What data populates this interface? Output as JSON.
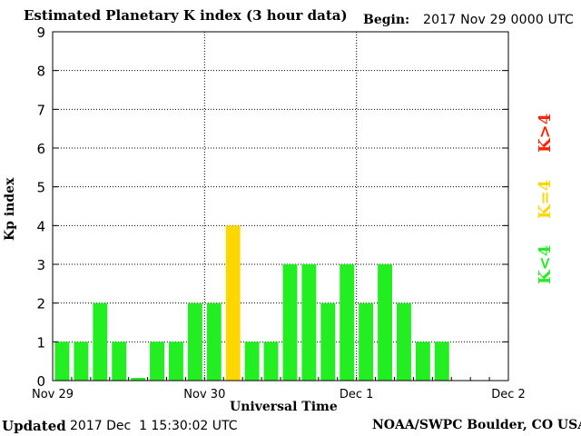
{
  "header": {
    "title": "Estimated Planetary K index (3 hour data)",
    "begin_label": "Begin:",
    "begin_value": "2017 Nov 29 0000 UTC"
  },
  "footer": {
    "updated_label": "Updated",
    "updated_value": "2017 Dec  1 15:30:02 UTC",
    "source": "NOAA/SWPC Boulder, CO USA"
  },
  "legend": {
    "gt": {
      "label": "K>4",
      "color": "#ff2200"
    },
    "eq": {
      "label": "K=4",
      "color": "#ffd700"
    },
    "lt": {
      "label": "K<4",
      "color": "#22ee22"
    }
  },
  "chart_data": {
    "type": "bar",
    "title": "Estimated Planetary K index (3 hour data)",
    "xlabel": "Universal Time",
    "ylabel": "Kp index",
    "ylim": [
      0,
      9
    ],
    "yticks": [
      0,
      1,
      2,
      3,
      4,
      5,
      6,
      7,
      8,
      9
    ],
    "xlim": [
      "2017-11-29 00:00",
      "2017-12-02 00:00"
    ],
    "xtick_labels": [
      "Nov 29",
      "Nov 30",
      "Dec 1",
      "Dec 2"
    ],
    "bar_interval_hours": 3,
    "grid": true,
    "x": [
      "2017-11-29 00:00",
      "2017-11-29 03:00",
      "2017-11-29 06:00",
      "2017-11-29 09:00",
      "2017-11-29 12:00",
      "2017-11-29 15:00",
      "2017-11-29 18:00",
      "2017-11-29 21:00",
      "2017-11-30 00:00",
      "2017-11-30 03:00",
      "2017-11-30 06:00",
      "2017-11-30 09:00",
      "2017-11-30 12:00",
      "2017-11-30 15:00",
      "2017-11-30 18:00",
      "2017-11-30 21:00",
      "2017-12-01 00:00",
      "2017-12-01 03:00",
      "2017-12-01 06:00",
      "2017-12-01 09:00",
      "2017-12-01 12:00",
      "2017-12-01 15:00"
    ],
    "values": [
      1,
      1,
      2,
      1,
      0.07,
      1,
      1,
      2,
      2,
      4,
      1,
      1,
      3,
      3,
      2,
      3,
      2,
      3,
      2,
      1,
      1,
      0
    ],
    "colors": {
      "below4": "#22ee22",
      "equal4": "#ffd700",
      "above4": "#ff2200"
    }
  }
}
